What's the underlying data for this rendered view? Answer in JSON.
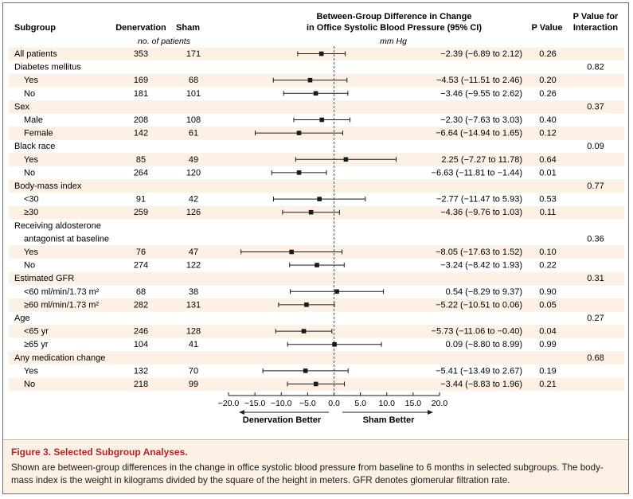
{
  "caption": {
    "title": "Figure 3. Selected Subgroup Analyses.",
    "body": "Shown are between-group differences in the change in office systolic blood pressure from baseline to 6 months in selected subgroups. The body-mass index is the weight in kilograms divided by the square of the height in meters. GFR denotes glomerular filtration rate."
  },
  "colors": {
    "band": "#fdf1e6",
    "caption_title": "#b3262b",
    "marker": "#1a1a1a"
  },
  "chart_data": {
    "type": "forest",
    "headers": {
      "subgroup": "Subgroup",
      "denervation": "Denervation",
      "sham": "Sham",
      "difference_line1": "Between-Group Difference in Change",
      "difference_line2": "in Office Systolic Blood Pressure (95% CI)",
      "p_value": "P Value",
      "p_interaction_line1": "P Value for",
      "p_interaction_line2": "Interaction",
      "patients_unit": "no. of patients",
      "mmhg_unit": "mm Hg"
    },
    "xlim": [
      -20,
      20
    ],
    "ticks": [
      -20,
      -15,
      -10,
      -5,
      0,
      5,
      10,
      15,
      20
    ],
    "tick_labels": [
      "−20.0",
      "−15.0",
      "−10.0",
      "−5.0",
      "0.0",
      "5.0",
      "10.0",
      "15.0",
      "20.0"
    ],
    "reference_line": 0,
    "direction_left": "Denervation Better",
    "direction_right": "Sham Better",
    "rows": [
      {
        "label": "All patients",
        "n_den": "353",
        "n_sham": "171",
        "est": -2.39,
        "lo": -6.89,
        "hi": 2.12,
        "ci_text": "−2.39 (−6.89  to 2.12)",
        "p": "0.26"
      },
      {
        "group": "Diabetes mellitus",
        "p_int": "0.82"
      },
      {
        "label": "Yes",
        "n_den": "169",
        "n_sham": "68",
        "est": -4.53,
        "lo": -11.51,
        "hi": 2.46,
        "ci_text": "−4.53 (−11.51 to 2.46)",
        "p": "0.20"
      },
      {
        "label": "No",
        "n_den": "181",
        "n_sham": "101",
        "est": -3.46,
        "lo": -9.55,
        "hi": 2.62,
        "ci_text": "−3.46 (−9.55 to 2.62)",
        "p": "0.26"
      },
      {
        "group": "Sex",
        "p_int": "0.37"
      },
      {
        "label": "Male",
        "n_den": "208",
        "n_sham": "108",
        "est": -2.3,
        "lo": -7.63,
        "hi": 3.03,
        "ci_text": "−2.30 (−7.63 to 3.03)",
        "p": "0.40"
      },
      {
        "label": "Female",
        "n_den": "142",
        "n_sham": "61",
        "est": -6.64,
        "lo": -14.94,
        "hi": 1.65,
        "ci_text": "−6.64 (−14.94 to 1.65)",
        "p": "0.12"
      },
      {
        "group": "Black race",
        "p_int": "0.09"
      },
      {
        "label": "Yes",
        "n_den": "85",
        "n_sham": "49",
        "est": 2.25,
        "lo": -7.27,
        "hi": 11.78,
        "ci_text": "2.25 (−7.27 to 11.78)",
        "p": "0.64"
      },
      {
        "label": "No",
        "n_den": "264",
        "n_sham": "120",
        "est": -6.63,
        "lo": -11.81,
        "hi": -1.44,
        "ci_text": "−6.63 (−11.81 to −1.44)",
        "p": "0.01"
      },
      {
        "group": "Body-mass index",
        "p_int": "0.77"
      },
      {
        "label": "<30",
        "n_den": "91",
        "n_sham": "42",
        "est": -2.77,
        "lo": -11.47,
        "hi": 5.93,
        "ci_text": "−2.77 (−11.47 to 5.93)",
        "p": "0.53"
      },
      {
        "label": "≥30",
        "n_den": "259",
        "n_sham": "126",
        "est": -4.36,
        "lo": -9.76,
        "hi": 1.03,
        "ci_text": "−4.36 (−9.76 to 1.03)",
        "p": "0.11"
      },
      {
        "group": "Receiving aldosterone",
        "group_line2": "antagonist at baseline",
        "p_int": "0.36"
      },
      {
        "label": "Yes",
        "n_den": "76",
        "n_sham": "47",
        "est": -8.05,
        "lo": -17.63,
        "hi": 1.52,
        "ci_text": "−8.05 (−17.63 to 1.52)",
        "p": "0.10"
      },
      {
        "label": "No",
        "n_den": "274",
        "n_sham": "122",
        "est": -3.24,
        "lo": -8.42,
        "hi": 1.93,
        "ci_text": "−3.24 (−8.42 to 1.93)",
        "p": "0.22"
      },
      {
        "group": "Estimated GFR",
        "p_int": "0.31"
      },
      {
        "label": "<60 ml/min/1.73 m²",
        "n_den": "68",
        "n_sham": "38",
        "est": 0.54,
        "lo": -8.29,
        "hi": 9.37,
        "ci_text": "0.54 (−8.29 to 9.37)",
        "p": "0.90"
      },
      {
        "label": "≥60 ml/min/1.73 m²",
        "n_den": "282",
        "n_sham": "131",
        "est": -5.22,
        "lo": -10.51,
        "hi": 0.06,
        "ci_text": "−5.22 (−10.51 to 0.06)",
        "p": "0.05"
      },
      {
        "group": "Age",
        "p_int": "0.27"
      },
      {
        "label": "<65 yr",
        "n_den": "246",
        "n_sham": "128",
        "est": -5.73,
        "lo": -11.06,
        "hi": -0.4,
        "ci_text": "−5.73 (−11.06 to −0.40)",
        "p": "0.04"
      },
      {
        "label": "≥65 yr",
        "n_den": "104",
        "n_sham": "41",
        "est": 0.09,
        "lo": -8.8,
        "hi": 8.99,
        "ci_text": "0.09 (−8.80 to 8.99)",
        "p": "0.99"
      },
      {
        "group": "Any medication change",
        "p_int": "0.68"
      },
      {
        "label": "Yes",
        "n_den": "132",
        "n_sham": "70",
        "est": -5.41,
        "lo": -13.49,
        "hi": 2.67,
        "ci_text": "−5.41 (−13.49 to 2.67)",
        "p": "0.19"
      },
      {
        "label": "No",
        "n_den": "218",
        "n_sham": "99",
        "est": -3.44,
        "lo": -8.83,
        "hi": 1.96,
        "ci_text": "−3.44 (−8.83 to 1.96)",
        "p": "0.21"
      }
    ]
  }
}
